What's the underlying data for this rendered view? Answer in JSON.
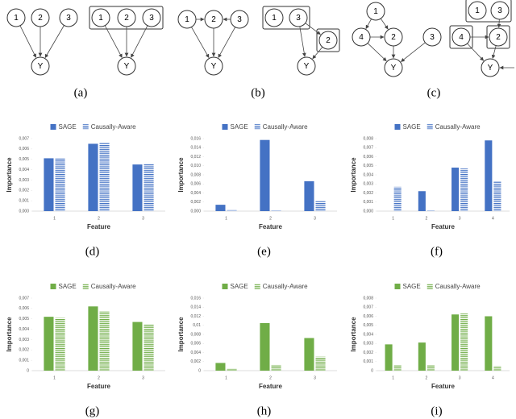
{
  "diagrams": [
    {
      "caption": "(a)",
      "graphs": [
        {
          "nodes": [
            "1",
            "2",
            "3",
            "Y"
          ]
        },
        {
          "nodes": [
            "1",
            "2",
            "3",
            "Y"
          ]
        }
      ]
    },
    {
      "caption": "(b)",
      "graphs": [
        {
          "nodes": [
            "1",
            "2",
            "3",
            "Y"
          ]
        },
        {
          "nodes": [
            "1",
            "3",
            "2",
            "Y"
          ]
        }
      ]
    },
    {
      "caption": "(c)",
      "graphs": [
        {
          "nodes": [
            "1",
            "4",
            "2",
            "3",
            "Y"
          ]
        },
        {
          "nodes": [
            "1",
            "3",
            "4",
            "2",
            "Y"
          ]
        }
      ]
    }
  ],
  "chart_data": [
    {
      "type": "bar",
      "caption": "(d)",
      "xlabel": "Feature",
      "ylabel": "Importance",
      "categories": [
        "1",
        "2",
        "3"
      ],
      "ylim": [
        0,
        0.007
      ],
      "yticks": [
        {
          "value": 0,
          "label": "0,000"
        },
        {
          "value": 0.001,
          "label": "0,001"
        },
        {
          "value": 0.002,
          "label": "0,002"
        },
        {
          "value": 0.003,
          "label": "0,003"
        },
        {
          "value": 0.004,
          "label": "0,004"
        },
        {
          "value": 0.005,
          "label": "0,005"
        },
        {
          "value": 0.006,
          "label": "0,006"
        },
        {
          "value": 0.007,
          "label": "0,007"
        }
      ],
      "series": [
        {
          "name": "SAGE",
          "color": "#4472c4",
          "fill": "solid",
          "values": [
            0.0051,
            0.0065,
            0.0045
          ]
        },
        {
          "name": "Causally-Aware",
          "color": "#4472c4",
          "fill": "hatched",
          "values": [
            0.0051,
            0.0066,
            0.0046
          ]
        }
      ]
    },
    {
      "type": "bar",
      "caption": "(e)",
      "xlabel": "Feature",
      "ylabel": "Importance",
      "categories": [
        "1",
        "2",
        "3"
      ],
      "ylim": [
        0,
        0.016
      ],
      "yticks": [
        {
          "value": 0,
          "label": "0,000"
        },
        {
          "value": 0.002,
          "label": "0,002"
        },
        {
          "value": 0.004,
          "label": "0,004"
        },
        {
          "value": 0.006,
          "label": "0,006"
        },
        {
          "value": 0.008,
          "label": "0,008"
        },
        {
          "value": 0.01,
          "label": "0,010"
        },
        {
          "value": 0.012,
          "label": "0,012"
        },
        {
          "value": 0.014,
          "label": "0,014"
        },
        {
          "value": 0.016,
          "label": "0,016"
        }
      ],
      "series": [
        {
          "name": "SAGE",
          "color": "#4472c4",
          "fill": "solid",
          "values": [
            0.0014,
            0.0157,
            0.0066
          ]
        },
        {
          "name": "Causally-Aware",
          "color": "#4472c4",
          "fill": "hatched",
          "values": [
            0.0003,
            0.0001,
            0.0022
          ]
        }
      ]
    },
    {
      "type": "bar",
      "caption": "(f)",
      "xlabel": "Feature",
      "ylabel": "Importance",
      "categories": [
        "1",
        "2",
        "3",
        "4"
      ],
      "ylim": [
        0,
        0.008
      ],
      "yticks": [
        {
          "value": 0,
          "label": "0,000"
        },
        {
          "value": 0.001,
          "label": "0,001"
        },
        {
          "value": 0.002,
          "label": "0,002"
        },
        {
          "value": 0.003,
          "label": "0,003"
        },
        {
          "value": 0.004,
          "label": "0,004"
        },
        {
          "value": 0.005,
          "label": "0,005"
        },
        {
          "value": 0.006,
          "label": "0,006"
        },
        {
          "value": 0.007,
          "label": "0,007"
        },
        {
          "value": 0.008,
          "label": "0,008"
        }
      ],
      "series": [
        {
          "name": "SAGE",
          "color": "#4472c4",
          "fill": "solid",
          "values": [
            0,
            0.0022,
            0.0048,
            0.0078
          ]
        },
        {
          "name": "Causally-Aware",
          "color": "#4472c4",
          "fill": "hatched",
          "values": [
            0.0027,
            0.0001,
            0.0047,
            0.0033
          ]
        }
      ]
    },
    {
      "type": "bar",
      "caption": "(g)",
      "xlabel": "Feature",
      "ylabel": "Importance",
      "categories": [
        "1",
        "2",
        "3"
      ],
      "ylim": [
        0,
        0.007
      ],
      "yticks": [
        0,
        {
          "value": 0.001,
          "label": "0,001"
        },
        {
          "value": 0.002,
          "label": "0,002"
        },
        {
          "value": 0.003,
          "label": "0,003"
        },
        {
          "value": 0.004,
          "label": "0,004"
        },
        {
          "value": 0.005,
          "label": "0,005"
        },
        {
          "value": 0.006,
          "label": "0,006"
        },
        {
          "value": 0.007,
          "label": "0,007"
        }
      ],
      "series": [
        {
          "name": "SAGE",
          "color": "#70ad47",
          "fill": "solid",
          "values": [
            0.0052,
            0.0062,
            0.0047
          ]
        },
        {
          "name": "Causally-Aware",
          "color": "#70ad47",
          "fill": "hatched",
          "values": [
            0.0051,
            0.0057,
            0.0045
          ]
        }
      ]
    },
    {
      "type": "bar",
      "caption": "(h)",
      "xlabel": "Feature",
      "ylabel": "Importance",
      "categories": [
        "1",
        "2",
        "3"
      ],
      "ylim": [
        0,
        0.016
      ],
      "yticks": [
        0,
        {
          "value": 0.002,
          "label": "0,002"
        },
        {
          "value": 0.004,
          "label": "0,004"
        },
        {
          "value": 0.006,
          "label": "0,006"
        },
        {
          "value": 0.008,
          "label": "0,008"
        },
        {
          "value": 0.01,
          "label": "0,01"
        },
        {
          "value": 0.012,
          "label": "0,012"
        },
        {
          "value": 0.014,
          "label": "0,014"
        },
        {
          "value": 0.016,
          "label": "0,016"
        }
      ],
      "series": [
        {
          "name": "SAGE",
          "color": "#70ad47",
          "fill": "solid",
          "values": [
            0.0017,
            0.0105,
            0.0072
          ]
        },
        {
          "name": "Causally-Aware",
          "color": "#70ad47",
          "fill": "hatched",
          "values": [
            0.0005,
            0.0013,
            0.0031
          ]
        }
      ]
    },
    {
      "type": "bar",
      "caption": "(i)",
      "xlabel": "Feature",
      "ylabel": "Importance",
      "categories": [
        "1",
        "2",
        "3",
        "4"
      ],
      "ylim": [
        0,
        0.008
      ],
      "yticks": [
        0,
        {
          "value": 0.001,
          "label": "0,001"
        },
        {
          "value": 0.002,
          "label": "0,002"
        },
        {
          "value": 0.003,
          "label": "0,003"
        },
        {
          "value": 0.004,
          "label": "0,004"
        },
        {
          "value": 0.005,
          "label": "0,005"
        },
        {
          "value": 0.006,
          "label": "0,006"
        },
        {
          "value": 0.007,
          "label": "0,007"
        },
        {
          "value": 0.008,
          "label": "0,008"
        }
      ],
      "series": [
        {
          "name": "SAGE",
          "color": "#70ad47",
          "fill": "solid",
          "values": [
            0.0029,
            0.0031,
            0.0062,
            0.006
          ]
        },
        {
          "name": "Causally-Aware",
          "color": "#70ad47",
          "fill": "hatched",
          "values": [
            0.0006,
            0.0006,
            0.0063,
            0.0005
          ]
        }
      ]
    }
  ]
}
